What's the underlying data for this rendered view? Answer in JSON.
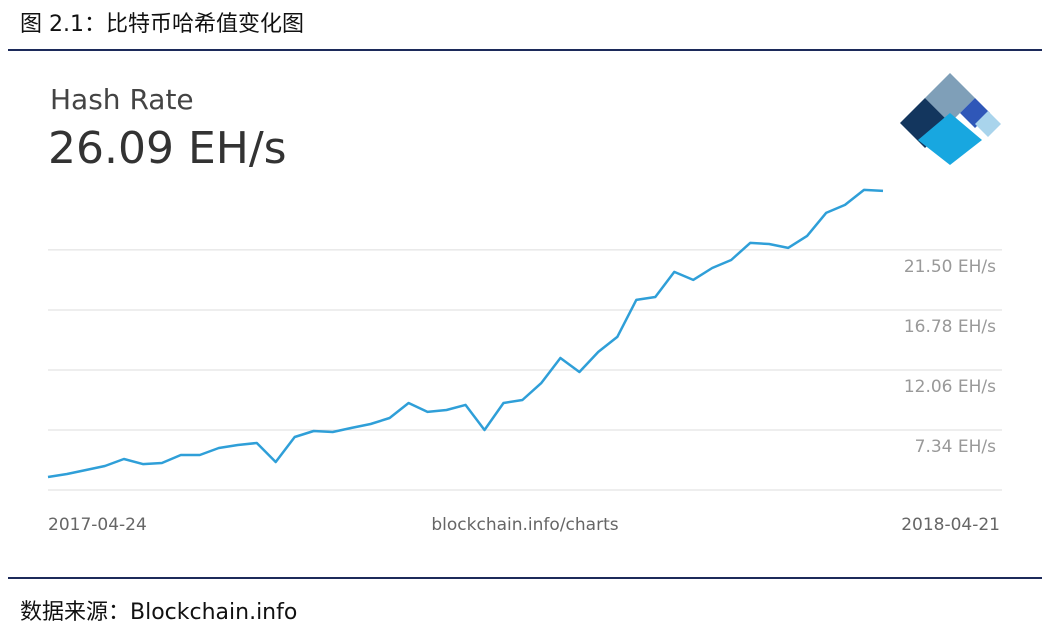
{
  "caption": "图 2.1：比特币哈希值变化图",
  "chart_data": {
    "type": "line",
    "title": "Hash Rate",
    "subtitle": "26.09 EH/s",
    "source": "blockchain.info/charts",
    "categories": [
      "2017-04-24",
      null,
      null,
      null,
      null,
      null,
      null,
      null,
      null,
      null,
      null,
      null,
      null,
      null,
      null,
      null,
      null,
      null,
      null,
      null,
      null,
      null,
      null,
      null,
      null,
      null,
      null,
      null,
      null,
      null,
      null,
      null,
      null,
      null,
      null,
      null,
      null,
      null,
      null,
      null,
      null,
      null,
      null,
      null,
      "2018-04-21"
    ],
    "values": [
      3.64,
      3.88,
      4.19,
      4.51,
      5.06,
      4.66,
      4.74,
      5.37,
      5.37,
      5.92,
      6.16,
      6.32,
      4.82,
      6.79,
      7.26,
      7.18,
      7.5,
      7.81,
      8.28,
      9.46,
      8.76,
      8.91,
      9.31,
      7.34,
      9.46,
      9.7,
      11.04,
      13.0,
      11.9,
      13.48,
      14.66,
      17.57,
      17.8,
      19.77,
      19.14,
      20.08,
      20.71,
      22.05,
      21.97,
      21.66,
      22.6,
      24.41,
      25.04,
      26.22,
      26.14
    ],
    "color": "#2f9fd8",
    "ylim": [
      2.62,
      27
    ],
    "yticks": [
      {
        "value": 7.34,
        "label": "7.34 EH/s"
      },
      {
        "value": 12.06,
        "label": "12.06 EH/s"
      },
      {
        "value": 16.78,
        "label": "16.78 EH/s"
      },
      {
        "value": 21.5,
        "label": "21.50 EH/s"
      }
    ],
    "grid": true
  },
  "footer": "数据来源：Blockchain.info"
}
